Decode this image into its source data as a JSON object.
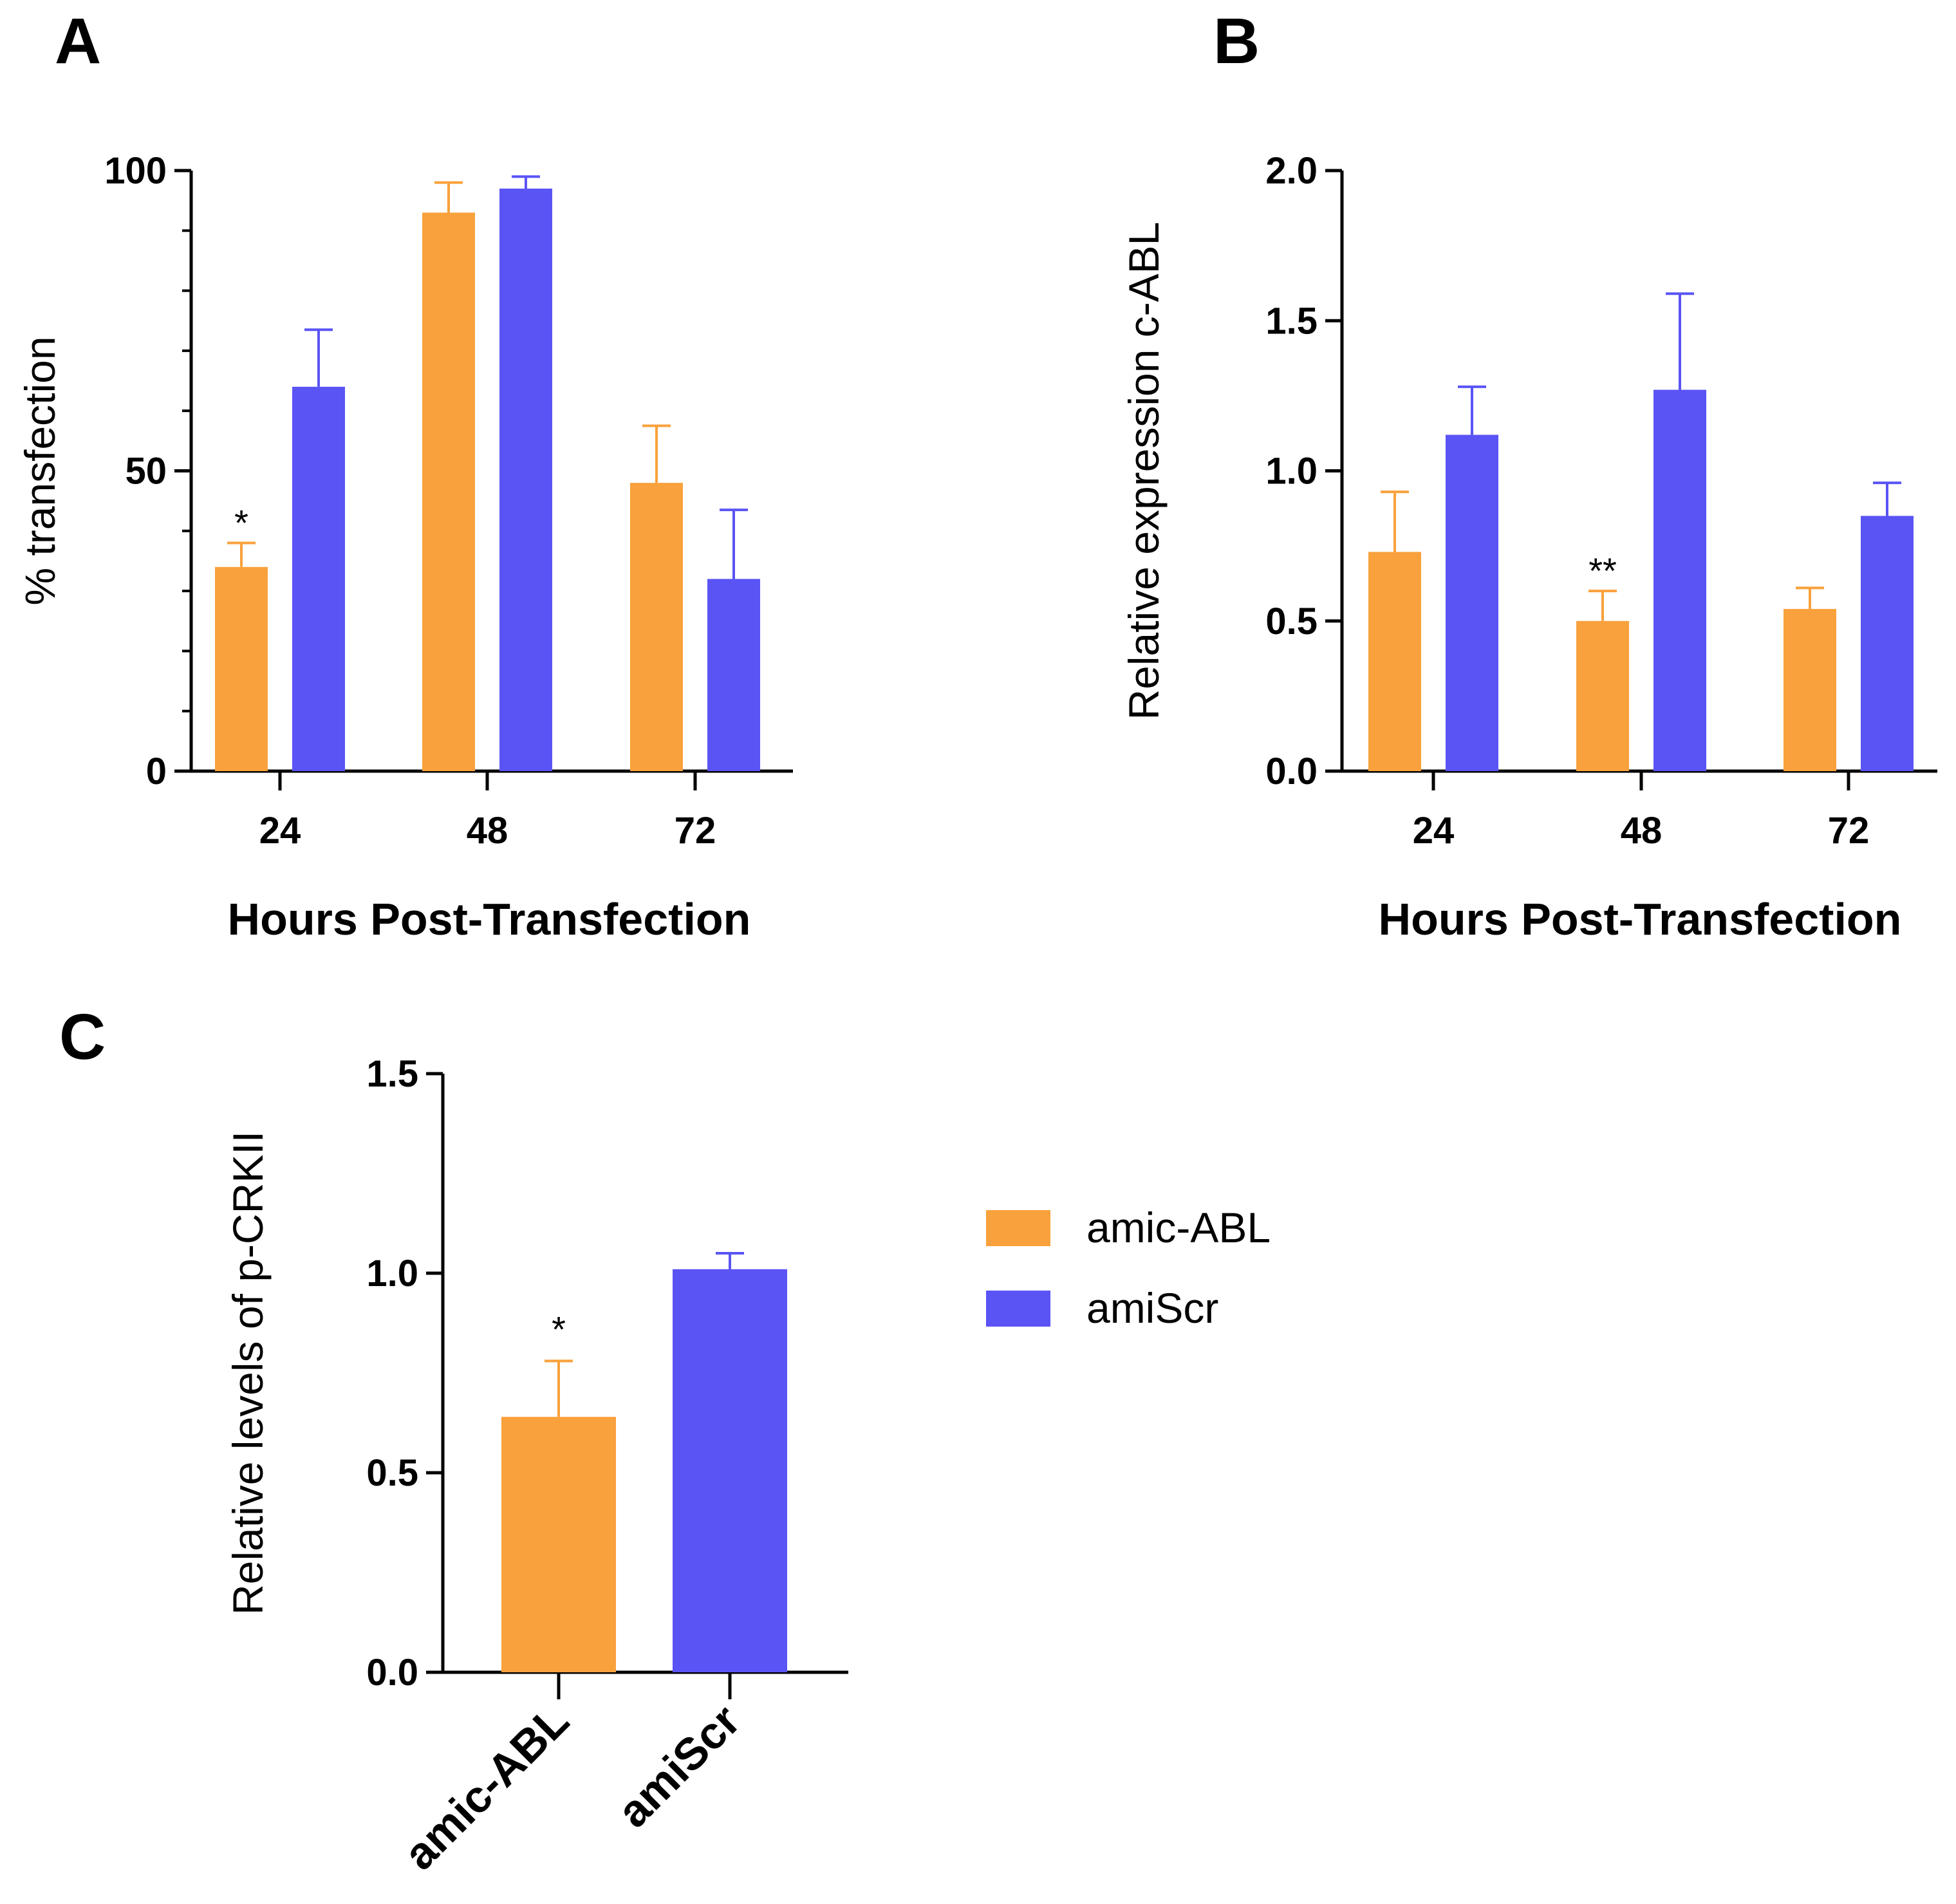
{
  "colors": {
    "amic-ABL": "#F9A13C",
    "amiScr": "#5A54F5"
  },
  "legend": [
    {
      "name": "amic-ABL",
      "color": "#F9A13C"
    },
    {
      "name": "amiScr",
      "color": "#5A54F5"
    }
  ],
  "chart_data": [
    {
      "panel": "A",
      "type": "bar",
      "title": "",
      "xlabel": "Hours Post-Transfection",
      "ylabel": "% transfection",
      "categories": [
        "24",
        "48",
        "72"
      ],
      "ylim": [
        0,
        100
      ],
      "yticks": [
        "0",
        "50",
        "100"
      ],
      "series": [
        {
          "name": "amic-ABL",
          "values": [
            34,
            93,
            48
          ],
          "errors": [
            4,
            5,
            9.5
          ],
          "significance": [
            "*",
            "",
            ""
          ]
        },
        {
          "name": "amiScr",
          "values": [
            64,
            97,
            32
          ],
          "errors": [
            9.5,
            2,
            11.5
          ],
          "significance": [
            "",
            "",
            ""
          ]
        }
      ]
    },
    {
      "panel": "B",
      "type": "bar",
      "title": "",
      "xlabel": "Hours Post-Transfection",
      "ylabel": "Relative expression c-ABL",
      "categories": [
        "24",
        "48",
        "72"
      ],
      "ylim": [
        0,
        2.0
      ],
      "yticks": [
        "0.0",
        "0.5",
        "1.0",
        "1.5",
        "2.0"
      ],
      "series": [
        {
          "name": "amic-ABL",
          "values": [
            0.73,
            0.5,
            0.54
          ],
          "errors": [
            0.2,
            0.1,
            0.07
          ],
          "significance": [
            "",
            "**",
            ""
          ]
        },
        {
          "name": "amiScr",
          "values": [
            1.12,
            1.27,
            0.85
          ],
          "errors": [
            0.16,
            0.32,
            0.11
          ],
          "significance": [
            "",
            "",
            ""
          ]
        }
      ]
    },
    {
      "panel": "C",
      "type": "bar",
      "title": "",
      "xlabel": "",
      "ylabel": "Relative levels of p-CRKII",
      "categories": [
        "amic-ABL",
        "amiScr"
      ],
      "ylim": [
        0,
        1.5
      ],
      "yticks": [
        "0.0",
        "0.5",
        "1.0",
        "1.5"
      ],
      "values": [
        0.64,
        1.01
      ],
      "errors": [
        0.14,
        0.04
      ],
      "significance": [
        "*",
        ""
      ],
      "bar_colors": [
        "#F9A13C",
        "#5A54F5"
      ]
    }
  ]
}
